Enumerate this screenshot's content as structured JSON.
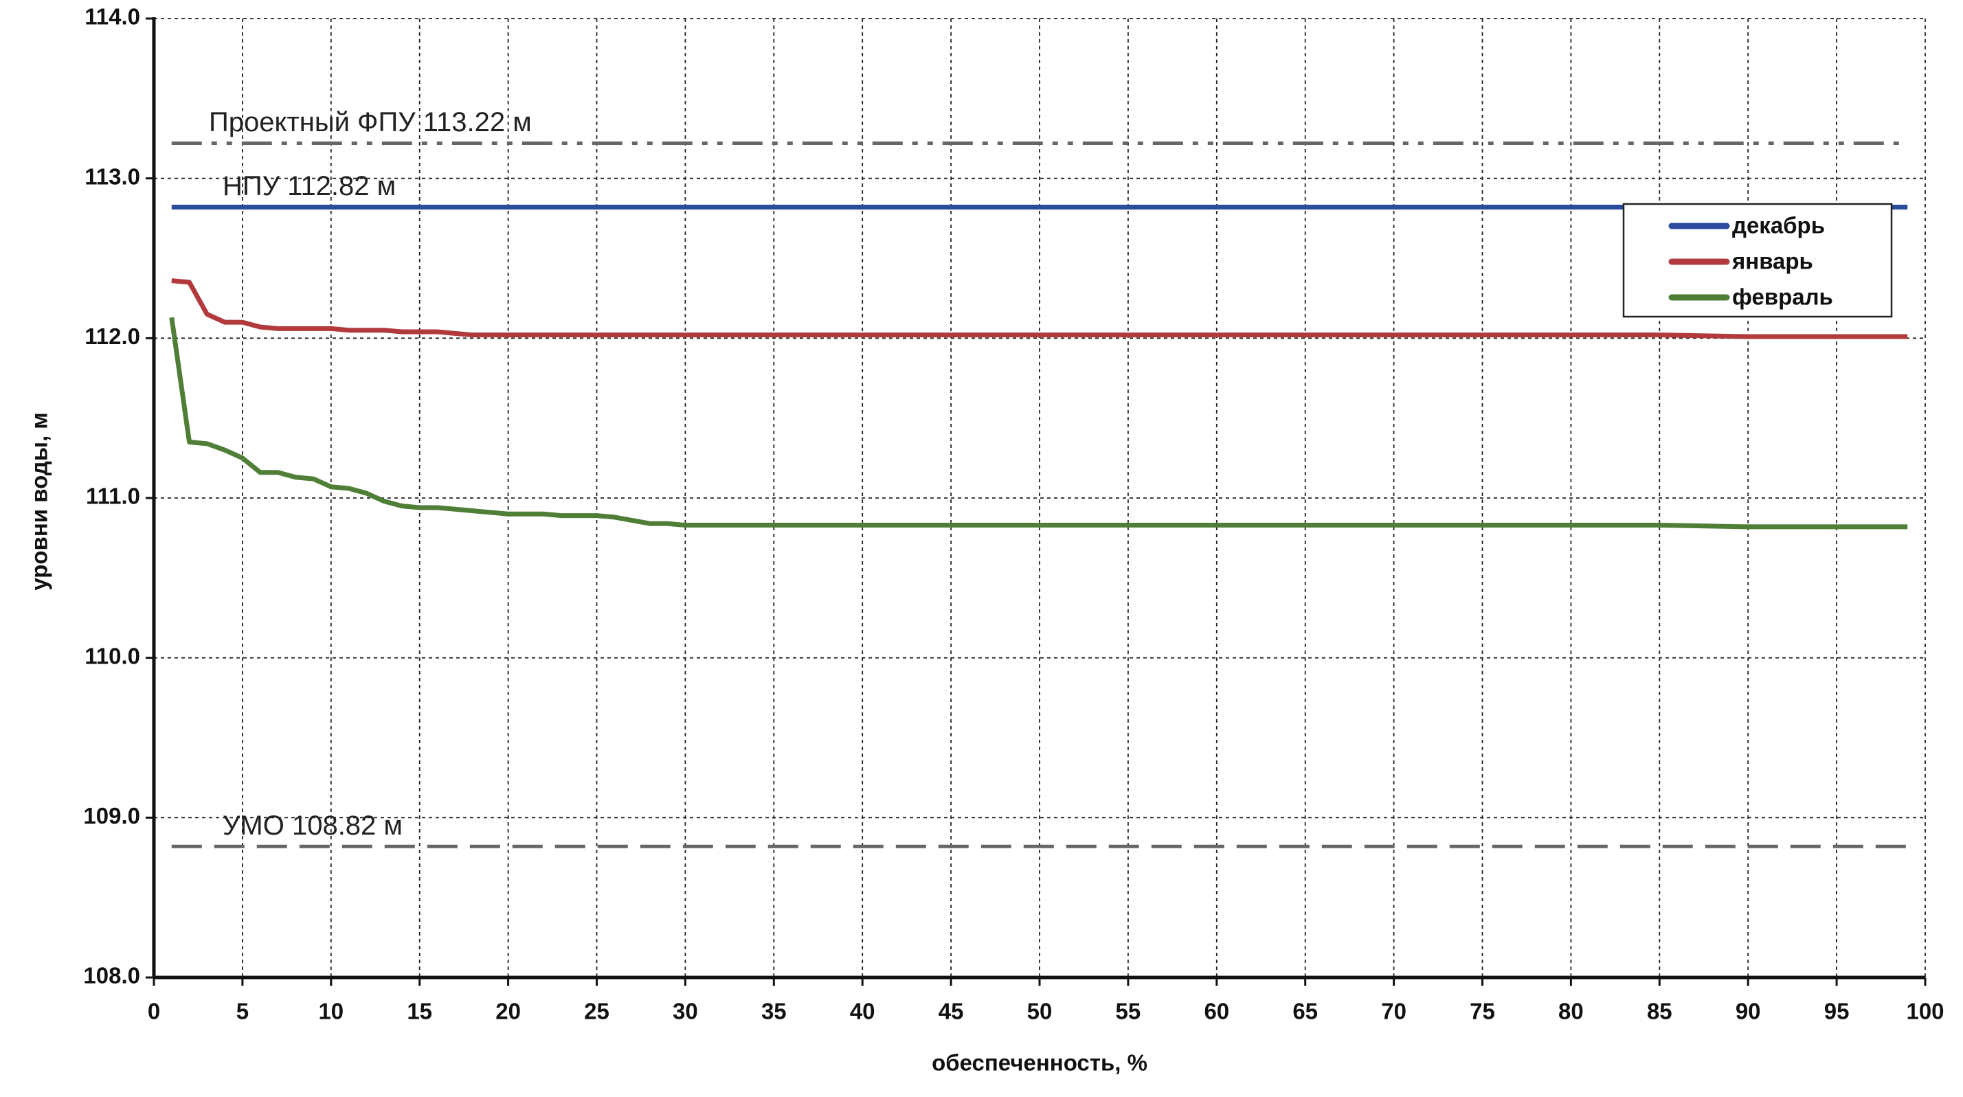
{
  "chart_data": {
    "type": "line",
    "x_label": "обеспеченность,  %",
    "y_label": "уровни воды, м",
    "x": [
      1,
      2,
      3,
      4,
      5,
      6,
      7,
      8,
      9,
      10,
      11,
      12,
      13,
      14,
      15,
      16,
      17,
      18,
      19,
      20,
      21,
      22,
      23,
      24,
      25,
      26,
      27,
      28,
      29,
      30,
      35,
      40,
      45,
      50,
      55,
      60,
      65,
      70,
      75,
      80,
      85,
      90,
      95,
      99
    ],
    "series": [
      {
        "name": "декабрь",
        "color": "#2b4c9c",
        "values": [
          112.82,
          112.82,
          112.82,
          112.82,
          112.82,
          112.82,
          112.82,
          112.82,
          112.82,
          112.82,
          112.82,
          112.82,
          112.82,
          112.82,
          112.82,
          112.82,
          112.82,
          112.82,
          112.82,
          112.82,
          112.82,
          112.82,
          112.82,
          112.82,
          112.82,
          112.82,
          112.82,
          112.82,
          112.82,
          112.82,
          112.82,
          112.82,
          112.82,
          112.82,
          112.82,
          112.82,
          112.82,
          112.82,
          112.82,
          112.82,
          112.82,
          112.82,
          112.82,
          112.82
        ]
      },
      {
        "name": "январь",
        "color": "#b23a3c",
        "values": [
          112.36,
          112.35,
          112.15,
          112.1,
          112.1,
          112.07,
          112.06,
          112.06,
          112.06,
          112.06,
          112.05,
          112.05,
          112.05,
          112.04,
          112.04,
          112.04,
          112.03,
          112.02,
          112.02,
          112.02,
          112.02,
          112.02,
          112.02,
          112.02,
          112.02,
          112.02,
          112.02,
          112.02,
          112.02,
          112.02,
          112.02,
          112.02,
          112.02,
          112.02,
          112.02,
          112.02,
          112.02,
          112.02,
          112.02,
          112.02,
          112.02,
          112.01,
          112.01,
          112.01
        ]
      },
      {
        "name": "февраль",
        "color": "#4f7f36",
        "values": [
          112.13,
          111.35,
          111.34,
          111.3,
          111.25,
          111.16,
          111.16,
          111.13,
          111.12,
          111.07,
          111.06,
          111.03,
          110.98,
          110.95,
          110.94,
          110.94,
          110.93,
          110.92,
          110.91,
          110.9,
          110.9,
          110.9,
          110.89,
          110.89,
          110.89,
          110.88,
          110.86,
          110.84,
          110.84,
          110.83,
          110.83,
          110.83,
          110.83,
          110.83,
          110.83,
          110.83,
          110.83,
          110.83,
          110.83,
          110.83,
          110.83,
          110.82,
          110.82,
          110.82
        ]
      }
    ],
    "reference_lines": [
      {
        "label": "Проектный ФПУ 113.22 м",
        "value": 113.22,
        "style": "dash-dot-dot"
      },
      {
        "label": "НПУ 112.82 м",
        "value": 112.82,
        "style": "none"
      },
      {
        "label": "УМО 108.82 м",
        "value": 108.82,
        "style": "dashed"
      }
    ],
    "xlim": [
      0,
      100
    ],
    "xticks": [
      0,
      5,
      10,
      15,
      20,
      25,
      30,
      35,
      40,
      45,
      50,
      55,
      60,
      65,
      70,
      75,
      80,
      85,
      90,
      95,
      100
    ],
    "ylim": [
      108,
      114
    ],
    "yticks": [
      {
        "value": 108,
        "label": "108.0"
      },
      {
        "value": 109,
        "label": "109.0"
      },
      {
        "value": 110,
        "label": "110.0"
      },
      {
        "value": 111,
        "label": "111.0"
      },
      {
        "value": 112,
        "label": "112.0"
      },
      {
        "value": 113,
        "label": "113.0"
      },
      {
        "value": 114,
        "label": "114.0"
      }
    ],
    "grid": true,
    "legend": "upper right"
  }
}
